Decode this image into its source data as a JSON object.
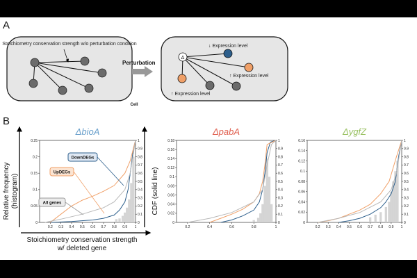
{
  "panel_a": {
    "label": "A",
    "left_cell_caption": "Stoichiometry conservation strength w/o perturbation condition",
    "perturbation_label": "Perturbation",
    "cell_label": "Cell",
    "delta_symbol": "Δ",
    "down_label": "↓ Expression level",
    "up_label_1": "↑ Expression level",
    "up_label_2": "↑ Expression level"
  },
  "panel_b": {
    "label": "B",
    "ylabel_left_1": "Relative frequency",
    "ylabel_left_2": "(histogram)",
    "ylabel_right_1": "CDF (solid line)",
    "xlabel_1": "Stoichiometry conservation strength",
    "xlabel_2": "w/ deleted gene",
    "legend": {
      "down": "DownDEGs",
      "up": "UpDEGs",
      "all": "All genes"
    }
  },
  "colors": {
    "up": "#f0a068",
    "down": "#2d5f8c",
    "all": "#b8b8b8",
    "hist": "#d0d0d0",
    "title_bioA": "#6aa0cc",
    "title_pabA": "#e06050",
    "title_ygfZ": "#98c060"
  },
  "chart_data": [
    {
      "type": "line",
      "title": "ΔbioA",
      "ylim_left": [
        0,
        0.25
      ],
      "yticks_left": [
        "0",
        "0.05",
        "0.1",
        "0.15",
        "0.2",
        "0.25"
      ],
      "ylim_right": [
        0,
        1
      ],
      "yticks_right": [
        "0",
        "0.1",
        "0.2",
        "0.3",
        "0.4",
        "0.5",
        "0.6",
        "0.7",
        "0.8",
        "0.9",
        "1"
      ],
      "xlim": [
        0.1,
        1
      ],
      "xticks": [
        "0.2",
        "0.3",
        "0.4",
        "0.5",
        "0.6",
        "0.7",
        "0.8",
        "0.9",
        "1"
      ],
      "histogram": {
        "x": [
          0.82,
          0.85,
          0.88,
          0.9,
          0.92,
          0.94,
          0.96,
          0.98
        ],
        "values": [
          0.01,
          0.012,
          0.02,
          0.03,
          0.045,
          0.07,
          0.12,
          0.2
        ]
      },
      "series": [
        {
          "name": "DownDEGs",
          "x": [
            0.2,
            0.4,
            0.6,
            0.7,
            0.8,
            0.85,
            0.9,
            0.93,
            0.96,
            0.98,
            1.0
          ],
          "values": [
            0,
            0.01,
            0.03,
            0.05,
            0.09,
            0.15,
            0.25,
            0.4,
            0.7,
            0.9,
            1.0
          ]
        },
        {
          "name": "UpDEGs",
          "x": [
            0.2,
            0.3,
            0.4,
            0.5,
            0.6,
            0.7,
            0.8,
            0.9,
            0.95,
            0.98,
            1.0
          ],
          "values": [
            0,
            0.1,
            0.2,
            0.27,
            0.32,
            0.38,
            0.45,
            0.6,
            0.75,
            0.9,
            1.0
          ]
        },
        {
          "name": "All genes",
          "x": [
            0.15,
            0.3,
            0.5,
            0.7,
            0.8,
            0.9,
            0.95,
            1.0
          ],
          "values": [
            0,
            0.04,
            0.1,
            0.18,
            0.25,
            0.4,
            0.6,
            1.0
          ]
        }
      ]
    },
    {
      "type": "line",
      "title": "ΔpabA",
      "ylim_left": [
        0,
        0.18
      ],
      "yticks_left": [
        "0",
        "0.02",
        "0.04",
        "0.06",
        "0.08",
        "0.1",
        "0.12",
        "0.14",
        "0.16",
        "0.18"
      ],
      "ylim_right": [
        0,
        1
      ],
      "yticks_right": [
        "0",
        "0.1",
        "0.2",
        "0.3",
        "0.4",
        "0.5",
        "0.6",
        "0.7",
        "0.8",
        "0.9",
        "1"
      ],
      "xlim": [
        0.1,
        1
      ],
      "xticks": [
        "0.2",
        "0.4",
        "0.6",
        "0.8",
        "1"
      ],
      "histogram": {
        "x": [
          0.8,
          0.84,
          0.86,
          0.88,
          0.9,
          0.92,
          0.94,
          0.96
        ],
        "values": [
          0.005,
          0.01,
          0.02,
          0.04,
          0.08,
          0.14,
          0.1,
          0.04
        ]
      },
      "series": [
        {
          "name": "DownDEGs",
          "x": [
            0.5,
            0.6,
            0.7,
            0.8,
            0.85,
            0.88,
            0.9,
            0.92,
            0.95,
            1.0
          ],
          "values": [
            0,
            0.03,
            0.08,
            0.15,
            0.25,
            0.4,
            0.6,
            0.85,
            0.98,
            1.0
          ]
        },
        {
          "name": "UpDEGs",
          "x": [
            0.4,
            0.5,
            0.6,
            0.7,
            0.8,
            0.85,
            0.88,
            0.9,
            0.92,
            1.0
          ],
          "values": [
            0,
            0.05,
            0.1,
            0.16,
            0.25,
            0.35,
            0.5,
            0.7,
            0.95,
            1.0
          ]
        },
        {
          "name": "All genes",
          "x": [
            0.2,
            0.4,
            0.6,
            0.8,
            0.88,
            0.92,
            0.96,
            1.0
          ],
          "values": [
            0,
            0.05,
            0.12,
            0.25,
            0.4,
            0.7,
            0.95,
            1.0
          ]
        }
      ]
    },
    {
      "type": "line",
      "title": "ΔygfZ",
      "ylim_left": [
        0,
        0.16
      ],
      "yticks_left": [
        "0",
        "0.02",
        "0.04",
        "0.06",
        "0.08",
        "0.1",
        "0.12",
        "0.14",
        "0.16"
      ],
      "ylim_right": [
        0,
        1
      ],
      "yticks_right": [
        "0",
        "0.1",
        "0.2",
        "0.3",
        "0.4",
        "0.5",
        "0.6",
        "0.7",
        "0.8",
        "0.9",
        "1"
      ],
      "xlim": [
        0.1,
        1
      ],
      "xticks": [
        "0.2",
        "0.3",
        "0.4",
        "0.5",
        "0.6",
        "0.7",
        "0.8",
        "0.9",
        "1"
      ],
      "histogram": {
        "x": [
          0.7,
          0.75,
          0.8,
          0.85,
          0.88,
          0.9,
          0.92,
          0.94,
          0.96
        ],
        "values": [
          0.01,
          0.015,
          0.02,
          0.03,
          0.04,
          0.06,
          0.08,
          0.1,
          0.12
        ]
      },
      "series": [
        {
          "name": "DownDEGs",
          "x": [
            0.4,
            0.5,
            0.6,
            0.7,
            0.8,
            0.85,
            0.9,
            0.94,
            0.97,
            1.0
          ],
          "values": [
            0,
            0.02,
            0.05,
            0.1,
            0.18,
            0.25,
            0.35,
            0.5,
            0.8,
            1.0
          ]
        },
        {
          "name": "UpDEGs",
          "x": [
            0.2,
            0.3,
            0.4,
            0.5,
            0.6,
            0.7,
            0.8,
            0.88,
            0.95,
            1.0
          ],
          "values": [
            0,
            0.02,
            0.05,
            0.1,
            0.15,
            0.22,
            0.35,
            0.5,
            0.8,
            1.0
          ]
        },
        {
          "name": "All genes",
          "x": [
            0.2,
            0.4,
            0.6,
            0.8,
            0.9,
            0.95,
            1.0
          ],
          "values": [
            0,
            0.05,
            0.12,
            0.25,
            0.4,
            0.6,
            1.0
          ]
        }
      ]
    }
  ]
}
